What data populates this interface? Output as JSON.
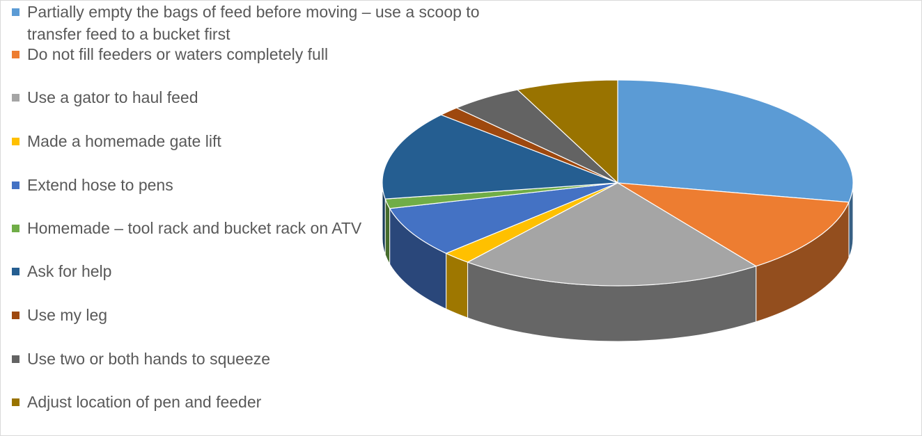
{
  "chart_data": {
    "type": "pie",
    "style": "3d-pie",
    "title": "",
    "legend_position": "left",
    "unit": "percent (estimated)",
    "categories": [
      "Partially empty the bags of feed before moving – use a scoop to transfer feed to a bucket first",
      "Do not fill feeders or waters completely full",
      "Use a gator to haul feed",
      "Made a homemade gate lift",
      "Extend hose to pens",
      "Homemade – tool rack and bucket rack on ATV",
      "Ask for help",
      "Use my leg",
      "Use two or both hands to squeeze",
      "Adjust location of pen and feeder"
    ],
    "values": [
      28,
      12,
      21,
      2,
      8,
      1.5,
      14,
      1.5,
      5,
      7
    ],
    "colors": [
      "#5B9BD5",
      "#ED7D31",
      "#A5A5A5",
      "#FFC000",
      "#4472C4",
      "#70AD47",
      "#255E91",
      "#9E480E",
      "#636363",
      "#997300"
    ]
  }
}
